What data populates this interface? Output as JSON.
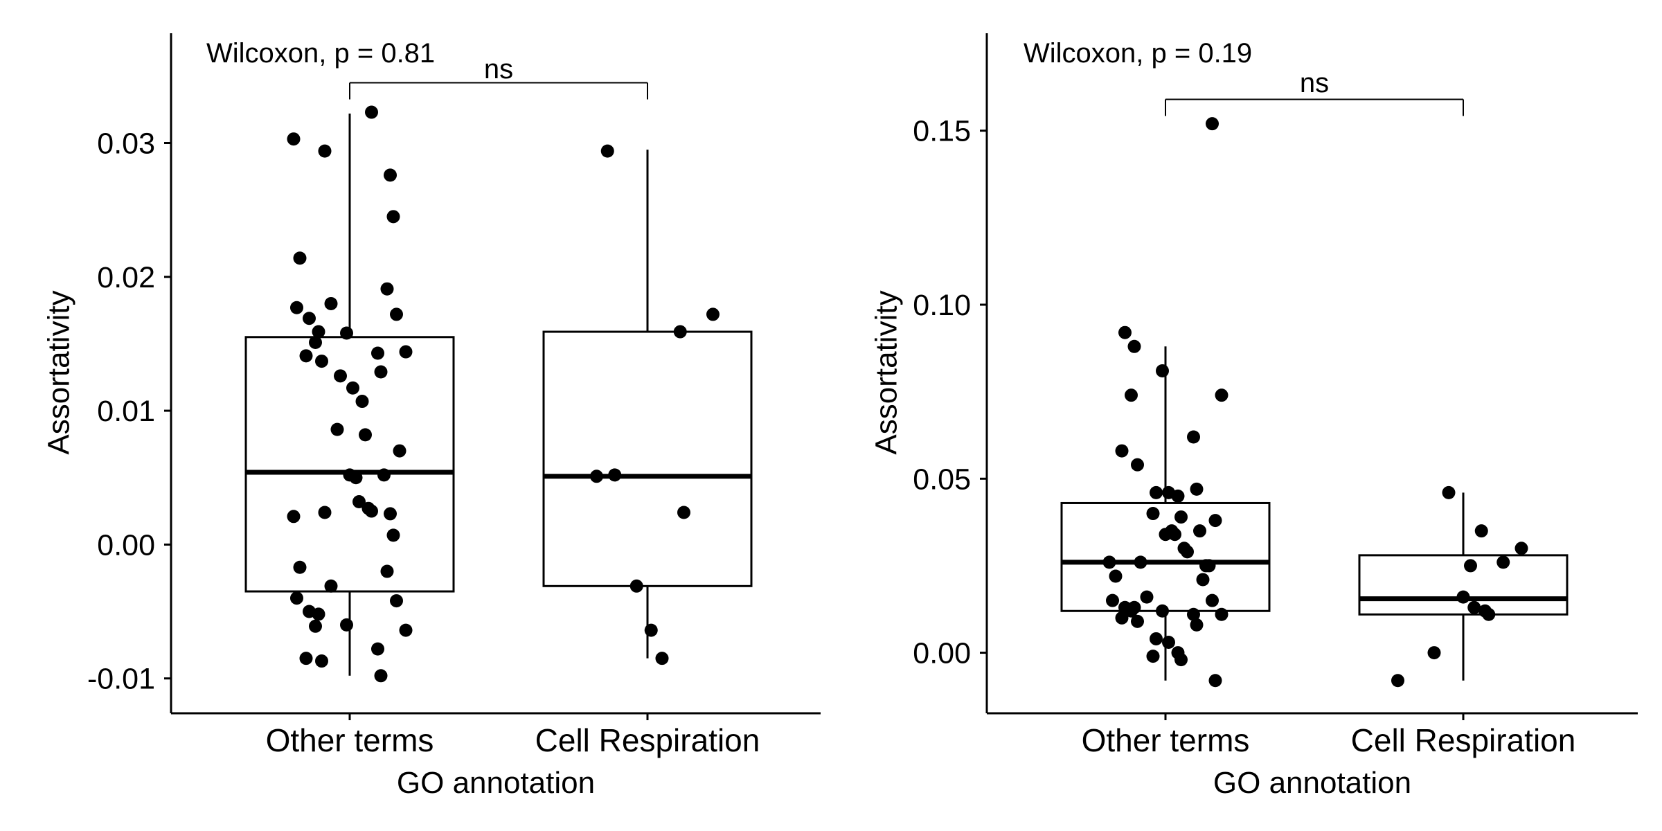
{
  "chart_data": [
    {
      "type": "box",
      "xlabel": "GO annotation",
      "ylabel": "Assortativity",
      "categories": [
        "Other terms",
        "Cell Respiration"
      ],
      "yticks": [
        "-0.01",
        "0.00",
        "0.01",
        "0.02",
        "0.03"
      ],
      "ytick_values": [
        -0.01,
        0.0,
        0.01,
        0.02,
        0.03
      ],
      "ylim": [
        -0.0125,
        0.0382
      ],
      "test_label": "Wilcoxon, p = 0.81",
      "significance_label": "ns",
      "bracket_y": 0.0345,
      "boxes": [
        {
          "category": "Other terms",
          "min": -0.0098,
          "q1": -0.0035,
          "median": 0.0054,
          "q3": 0.0155,
          "max": 0.0322
        },
        {
          "category": "Cell Respiration",
          "min": -0.0085,
          "q1": -0.0031,
          "median": 0.0051,
          "q3": 0.0159,
          "max": 0.0295
        }
      ],
      "points": [
        {
          "category": "Other terms",
          "values": [
            0.0323,
            0.0294,
            0.0303,
            0.0276,
            0.0245,
            0.0214,
            0.0191,
            0.018,
            0.0177,
            0.0172,
            0.0169,
            0.0159,
            0.0158,
            0.0151,
            0.0144,
            0.0143,
            0.0141,
            0.0137,
            0.0129,
            0.0126,
            0.0117,
            0.0107,
            0.0086,
            0.0082,
            0.007,
            0.0052,
            0.005,
            0.0052,
            0.0032,
            0.0027,
            0.0025,
            0.0024,
            0.0021,
            0.0023,
            0.0007,
            -0.0017,
            -0.002,
            -0.0031,
            -0.004,
            -0.0042,
            -0.005,
            -0.0052,
            -0.006,
            -0.0061,
            -0.0064,
            -0.0078,
            -0.0085,
            -0.0087,
            -0.0098
          ]
        },
        {
          "category": "Cell Respiration",
          "values": [
            0.0294,
            0.0172,
            0.0159,
            0.0051,
            0.0052,
            0.0024,
            -0.0031,
            -0.0064,
            -0.0085
          ]
        }
      ]
    },
    {
      "type": "box",
      "xlabel": "GO annotation",
      "ylabel": "Assortativity",
      "categories": [
        "Other terms",
        "Cell Respiration"
      ],
      "yticks": [
        "0.00",
        "0.05",
        "0.10",
        "0.15"
      ],
      "ytick_values": [
        0.0,
        0.05,
        0.1,
        0.15
      ],
      "ylim": [
        -0.017,
        0.178
      ],
      "test_label": "Wilcoxon, p = 0.19",
      "significance_label": "ns",
      "bracket_y": 0.159,
      "boxes": [
        {
          "category": "Other terms",
          "min": -0.008,
          "q1": 0.012,
          "median": 0.026,
          "q3": 0.043,
          "max": 0.088
        },
        {
          "category": "Cell Respiration",
          "min": -0.008,
          "q1": 0.011,
          "median": 0.0155,
          "q3": 0.028,
          "max": 0.046
        }
      ],
      "points": [
        {
          "category": "Other terms",
          "values": [
            0.152,
            0.092,
            0.088,
            0.081,
            0.074,
            0.074,
            0.062,
            0.058,
            0.054,
            0.047,
            0.046,
            0.046,
            0.045,
            0.04,
            0.039,
            0.038,
            0.035,
            0.035,
            0.034,
            0.034,
            0.03,
            0.029,
            0.026,
            0.026,
            0.025,
            0.025,
            0.022,
            0.021,
            0.016,
            0.015,
            0.015,
            0.013,
            0.013,
            0.012,
            0.012,
            0.011,
            0.011,
            0.01,
            0.009,
            0.008,
            0.004,
            0.003,
            0.0,
            -0.001,
            -0.002,
            -0.008
          ]
        },
        {
          "category": "Cell Respiration",
          "values": [
            0.046,
            0.035,
            0.03,
            0.026,
            0.025,
            0.016,
            0.013,
            0.012,
            0.011,
            0.0,
            -0.008
          ]
        }
      ]
    }
  ]
}
